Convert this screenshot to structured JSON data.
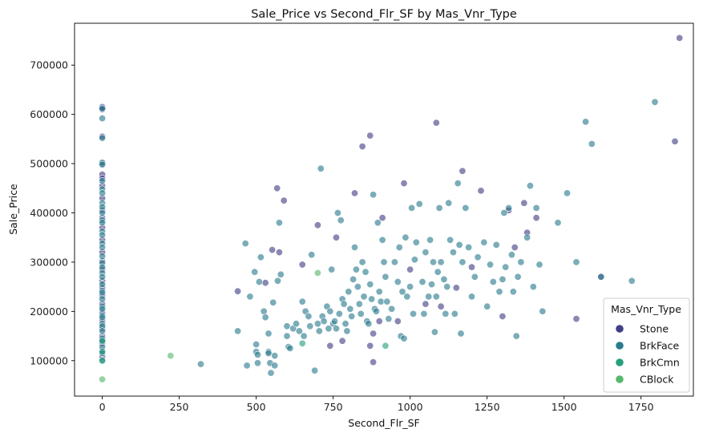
{
  "chart_data": {
    "type": "scatter",
    "title": "Sale_Price vs Second_Flr_SF by Mas_Vnr_Type",
    "xlabel": "Second_Flr_SF",
    "ylabel": "Sale_Price",
    "xlim": [
      -90,
      1920
    ],
    "ylim": [
      28000,
      785000
    ],
    "xticks": [
      0,
      250,
      500,
      750,
      1000,
      1250,
      1500,
      1750
    ],
    "yticks": [
      100000,
      200000,
      300000,
      400000,
      500000,
      600000,
      700000
    ],
    "grid": false,
    "legend": {
      "title": "Mas_Vnr_Type",
      "placement": "bottom-right"
    },
    "series": [
      {
        "name": "Stone",
        "color": "#423f85",
        "points": [
          [
            0,
            615000
          ],
          [
            0,
            610000
          ],
          [
            0,
            555000
          ],
          [
            0,
            500000
          ],
          [
            0,
            478000
          ],
          [
            0,
            470000
          ],
          [
            0,
            455000
          ],
          [
            0,
            430000
          ],
          [
            0,
            405000
          ],
          [
            0,
            390000
          ],
          [
            0,
            370000
          ],
          [
            0,
            345000
          ],
          [
            0,
            320000
          ],
          [
            0,
            302000
          ],
          [
            0,
            285000
          ],
          [
            0,
            262000
          ],
          [
            0,
            248000
          ],
          [
            0,
            232000
          ],
          [
            0,
            215000
          ],
          [
            0,
            198000
          ],
          [
            0,
            182000
          ],
          [
            0,
            165000
          ],
          [
            0,
            150000
          ],
          [
            0,
            135000
          ],
          [
            0,
            120000
          ],
          [
            0,
            108000
          ],
          [
            440,
            241000
          ],
          [
            530,
            258000
          ],
          [
            552,
            325000
          ],
          [
            568,
            450000
          ],
          [
            575,
            320000
          ],
          [
            590,
            425000
          ],
          [
            650,
            295000
          ],
          [
            700,
            375000
          ],
          [
            760,
            350000
          ],
          [
            820,
            440000
          ],
          [
            845,
            535000
          ],
          [
            870,
            557000
          ],
          [
            880,
            97000
          ],
          [
            870,
            130000
          ],
          [
            910,
            390000
          ],
          [
            980,
            460000
          ],
          [
            1000,
            285000
          ],
          [
            1085,
            583000
          ],
          [
            1150,
            248000
          ],
          [
            1170,
            485000
          ],
          [
            1200,
            290000
          ],
          [
            1230,
            445000
          ],
          [
            1300,
            190000
          ],
          [
            1320,
            405000
          ],
          [
            1340,
            330000
          ],
          [
            1370,
            420000
          ],
          [
            1380,
            360000
          ],
          [
            1410,
            390000
          ],
          [
            1540,
            185000
          ],
          [
            1620,
            270000
          ],
          [
            1860,
            545000
          ],
          [
            1875,
            755000
          ],
          [
            900,
            180000
          ],
          [
            780,
            140000
          ],
          [
            740,
            130000
          ],
          [
            880,
            155000
          ],
          [
            960,
            180000
          ],
          [
            1050,
            215000
          ],
          [
            1100,
            210000
          ]
        ]
      },
      {
        "name": "BrkFace",
        "color": "#2a7b8e",
        "points": [
          [
            0,
            612000
          ],
          [
            0,
            592000
          ],
          [
            0,
            552000
          ],
          [
            0,
            502000
          ],
          [
            0,
            498000
          ],
          [
            0,
            465000
          ],
          [
            0,
            448000
          ],
          [
            0,
            440000
          ],
          [
            0,
            420000
          ],
          [
            0,
            412000
          ],
          [
            0,
            400000
          ],
          [
            0,
            385000
          ],
          [
            0,
            380000
          ],
          [
            0,
            362000
          ],
          [
            0,
            355000
          ],
          [
            0,
            338000
          ],
          [
            0,
            330000
          ],
          [
            0,
            312000
          ],
          [
            0,
            298000
          ],
          [
            0,
            290000
          ],
          [
            0,
            278000
          ],
          [
            0,
            270000
          ],
          [
            0,
            255000
          ],
          [
            0,
            242000
          ],
          [
            0,
            238000
          ],
          [
            0,
            225000
          ],
          [
            0,
            210000
          ],
          [
            0,
            205000
          ],
          [
            0,
            192000
          ],
          [
            0,
            188000
          ],
          [
            0,
            175000
          ],
          [
            0,
            170000
          ],
          [
            0,
            160000
          ],
          [
            0,
            145000
          ],
          [
            0,
            140000
          ],
          [
            0,
            128000
          ],
          [
            0,
            115000
          ],
          [
            0,
            100000
          ],
          [
            320,
            93000
          ],
          [
            440,
            160000
          ],
          [
            465,
            338000
          ],
          [
            470,
            90000
          ],
          [
            480,
            230000
          ],
          [
            495,
            280000
          ],
          [
            500,
            133000
          ],
          [
            500,
            118000
          ],
          [
            505,
            112000
          ],
          [
            505,
            95000
          ],
          [
            510,
            260000
          ],
          [
            515,
            310000
          ],
          [
            525,
            200000
          ],
          [
            530,
            188000
          ],
          [
            540,
            155000
          ],
          [
            540,
            118000
          ],
          [
            540,
            115000
          ],
          [
            545,
            95000
          ],
          [
            548,
            75000
          ],
          [
            555,
            218000
          ],
          [
            560,
            90000
          ],
          [
            560,
            110000
          ],
          [
            570,
            262000
          ],
          [
            575,
            380000
          ],
          [
            580,
            275000
          ],
          [
            600,
            170000
          ],
          [
            600,
            150000
          ],
          [
            605,
            128000
          ],
          [
            610,
            125000
          ],
          [
            620,
            165000
          ],
          [
            630,
            175000
          ],
          [
            640,
            160000
          ],
          [
            650,
            220000
          ],
          [
            655,
            150000
          ],
          [
            660,
            200000
          ],
          [
            670,
            190000
          ],
          [
            675,
            170000
          ],
          [
            680,
            315000
          ],
          [
            690,
            80000
          ],
          [
            700,
            175000
          ],
          [
            705,
            160000
          ],
          [
            710,
            490000
          ],
          [
            715,
            190000
          ],
          [
            720,
            180000
          ],
          [
            730,
            210000
          ],
          [
            735,
            165000
          ],
          [
            740,
            200000
          ],
          [
            745,
            285000
          ],
          [
            750,
            175000
          ],
          [
            755,
            180000
          ],
          [
            760,
            165000
          ],
          [
            765,
            400000
          ],
          [
            770,
            195000
          ],
          [
            775,
            385000
          ],
          [
            780,
            225000
          ],
          [
            785,
            215000
          ],
          [
            790,
            175000
          ],
          [
            795,
            160000
          ],
          [
            800,
            240000
          ],
          [
            805,
            205000
          ],
          [
            810,
            190000
          ],
          [
            815,
            265000
          ],
          [
            820,
            330000
          ],
          [
            825,
            285000
          ],
          [
            830,
            250000
          ],
          [
            835,
            215000
          ],
          [
            840,
            195000
          ],
          [
            845,
            300000
          ],
          [
            850,
            230000
          ],
          [
            855,
            280000
          ],
          [
            860,
            180000
          ],
          [
            865,
            175000
          ],
          [
            870,
            255000
          ],
          [
            875,
            225000
          ],
          [
            880,
            437000
          ],
          [
            885,
            205000
          ],
          [
            890,
            200000
          ],
          [
            895,
            380000
          ],
          [
            900,
            240000
          ],
          [
            905,
            220000
          ],
          [
            910,
            345000
          ],
          [
            915,
            300000
          ],
          [
            920,
            270000
          ],
          [
            925,
            220000
          ],
          [
            930,
            185000
          ],
          [
            940,
            205000
          ],
          [
            950,
            300000
          ],
          [
            960,
            260000
          ],
          [
            965,
            330000
          ],
          [
            970,
            150000
          ],
          [
            975,
            240000
          ],
          [
            980,
            145000
          ],
          [
            985,
            350000
          ],
          [
            990,
            230000
          ],
          [
            1000,
            250000
          ],
          [
            1005,
            410000
          ],
          [
            1010,
            195000
          ],
          [
            1015,
            305000
          ],
          [
            1020,
            340000
          ],
          [
            1030,
            418000
          ],
          [
            1040,
            260000
          ],
          [
            1045,
            195000
          ],
          [
            1050,
            320000
          ],
          [
            1060,
            230000
          ],
          [
            1065,
            345000
          ],
          [
            1070,
            255000
          ],
          [
            1075,
            300000
          ],
          [
            1080,
            158000
          ],
          [
            1085,
            230000
          ],
          [
            1090,
            280000
          ],
          [
            1095,
            410000
          ],
          [
            1100,
            300000
          ],
          [
            1110,
            265000
          ],
          [
            1115,
            195000
          ],
          [
            1120,
            250000
          ],
          [
            1125,
            420000
          ],
          [
            1130,
            345000
          ],
          [
            1140,
            320000
          ],
          [
            1145,
            195000
          ],
          [
            1155,
            460000
          ],
          [
            1160,
            335000
          ],
          [
            1165,
            155000
          ],
          [
            1170,
            300000
          ],
          [
            1180,
            410000
          ],
          [
            1190,
            330000
          ],
          [
            1200,
            230000
          ],
          [
            1210,
            270000
          ],
          [
            1220,
            310000
          ],
          [
            1240,
            340000
          ],
          [
            1250,
            210000
          ],
          [
            1260,
            295000
          ],
          [
            1270,
            260000
          ],
          [
            1280,
            335000
          ],
          [
            1290,
            240000
          ],
          [
            1300,
            265000
          ],
          [
            1305,
            400000
          ],
          [
            1310,
            290000
          ],
          [
            1320,
            410000
          ],
          [
            1330,
            315000
          ],
          [
            1335,
            240000
          ],
          [
            1345,
            150000
          ],
          [
            1350,
            270000
          ],
          [
            1360,
            300000
          ],
          [
            1380,
            350000
          ],
          [
            1390,
            455000
          ],
          [
            1400,
            250000
          ],
          [
            1410,
            410000
          ],
          [
            1420,
            295000
          ],
          [
            1430,
            200000
          ],
          [
            1480,
            380000
          ],
          [
            1510,
            440000
          ],
          [
            1540,
            300000
          ],
          [
            1570,
            585000
          ],
          [
            1590,
            540000
          ],
          [
            1620,
            270000
          ],
          [
            1720,
            262000
          ],
          [
            1795,
            625000
          ]
        ]
      },
      {
        "name": "BrkCmn",
        "color": "#25a07c",
        "points": [
          [
            0,
            140000
          ],
          [
            0,
            118000
          ],
          [
            0,
            100000
          ],
          [
            650,
            135000
          ],
          [
            920,
            130000
          ]
        ]
      },
      {
        "name": "CBlock",
        "color": "#58b86e",
        "points": [
          [
            0,
            62000
          ],
          [
            222,
            110000
          ],
          [
            700,
            278000
          ]
        ]
      }
    ]
  }
}
